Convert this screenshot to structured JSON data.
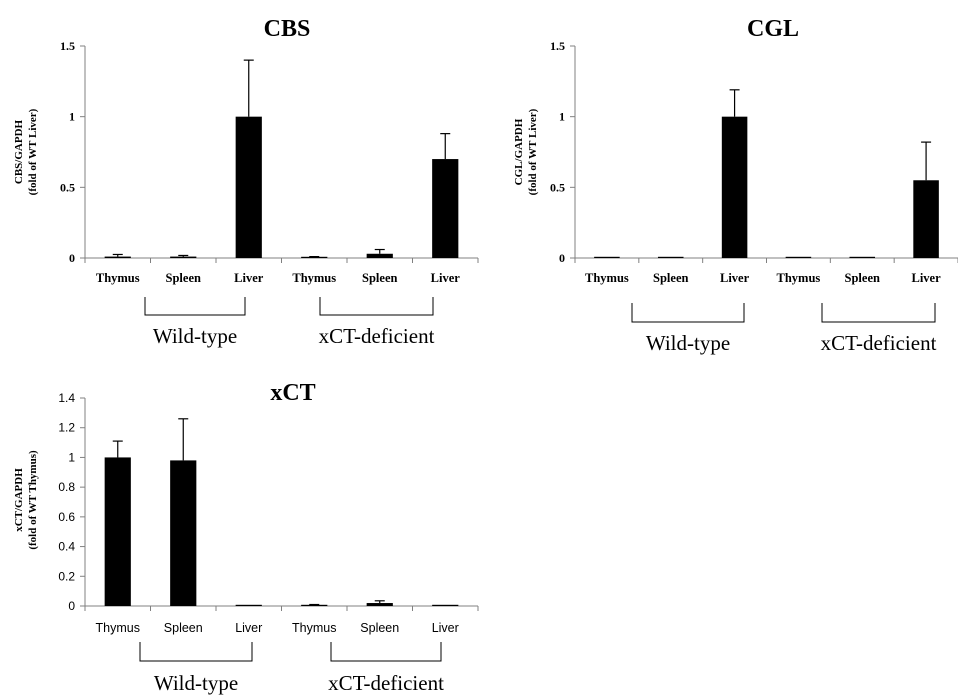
{
  "chart_data": [
    {
      "type": "bar",
      "title": "CBS",
      "ylabel_line1": "CBS/GAPDH",
      "ylabel_line2": "(fold of WT Liver)",
      "categories": [
        "Thymus",
        "Spleen",
        "Liver",
        "Thymus",
        "Spleen",
        "Liver"
      ],
      "values": [
        0.01,
        0.01,
        1.0,
        0.005,
        0.03,
        0.7
      ],
      "errors": [
        0.015,
        0.008,
        0.4,
        0.005,
        0.03,
        0.18
      ],
      "ylim": [
        0,
        1.5
      ],
      "yticks": [
        "0",
        "0.5",
        "1",
        "1.5"
      ],
      "groups": [
        "Wild-type",
        "xCT-deficient"
      ],
      "bar_color": "#000000",
      "grid": false
    },
    {
      "type": "bar",
      "title": "CGL",
      "ylabel_line1": "CGL/GAPDH",
      "ylabel_line2": "(fold of WT Liver)",
      "categories": [
        "Thymus",
        "Spleen",
        "Liver",
        "Thymus",
        "Spleen",
        "Liver"
      ],
      "values": [
        0.005,
        0.005,
        1.0,
        0.005,
        0.005,
        0.55
      ],
      "errors": [
        0,
        0,
        0.19,
        0,
        0,
        0.27
      ],
      "ylim": [
        0,
        1.5
      ],
      "yticks": [
        "0",
        "0.5",
        "1",
        "1.5"
      ],
      "groups": [
        "Wild-type",
        "xCT-deficient"
      ],
      "bar_color": "#000000",
      "grid": false
    },
    {
      "type": "bar",
      "title": "xCT",
      "ylabel_line1": "xCT/GAPDH",
      "ylabel_line2": "(fold of WT Thymus)",
      "categories": [
        "Thymus",
        "Spleen",
        "Liver",
        "Thymus",
        "Spleen",
        "Liver"
      ],
      "values": [
        1.0,
        0.98,
        0.0,
        0.005,
        0.02,
        0.0
      ],
      "errors": [
        0.11,
        0.28,
        0,
        0.005,
        0.015,
        0
      ],
      "ylim": [
        0,
        1.4
      ],
      "yticks": [
        "0",
        "0.2",
        "0.4",
        "0.6",
        "0.8",
        "1",
        "1.2",
        "1.4"
      ],
      "groups": [
        "Wild-type",
        "xCT-deficient"
      ],
      "bar_color": "#000000",
      "grid": false
    }
  ]
}
